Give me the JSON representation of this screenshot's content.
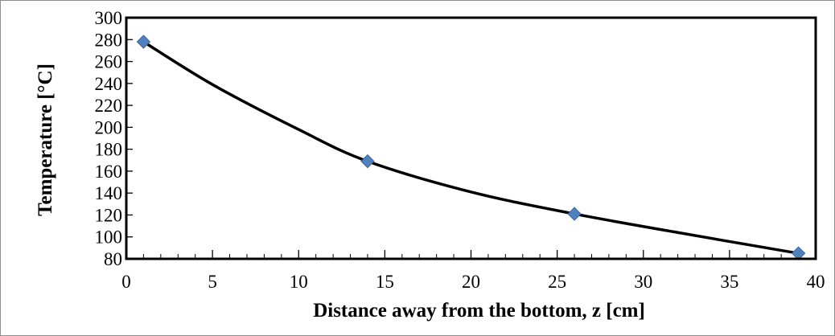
{
  "chart_data": {
    "type": "scatter",
    "title": "",
    "xlabel": "Distance away from the bottom, z [cm]",
    "ylabel": "Temperature [°C]",
    "xlim": [
      0,
      40
    ],
    "ylim": [
      80,
      300
    ],
    "xticks": [
      0,
      5,
      10,
      15,
      20,
      25,
      30,
      35,
      40
    ],
    "yticks": [
      80,
      100,
      120,
      140,
      160,
      180,
      200,
      220,
      240,
      260,
      280,
      300
    ],
    "x_minor_step": 1,
    "grid": false,
    "legend": "none",
    "series": [
      {
        "marker": "diamond",
        "color": "#4f81bd",
        "x": [
          1,
          14,
          26,
          39
        ],
        "y": [
          278,
          169,
          121,
          85
        ]
      }
    ],
    "trendline": {
      "style": "smooth curve",
      "color": "#000000",
      "x": [
        1,
        5,
        10,
        14,
        20,
        26,
        32,
        39
      ],
      "y": [
        278,
        239,
        198,
        169,
        141,
        121,
        104,
        85
      ]
    }
  }
}
